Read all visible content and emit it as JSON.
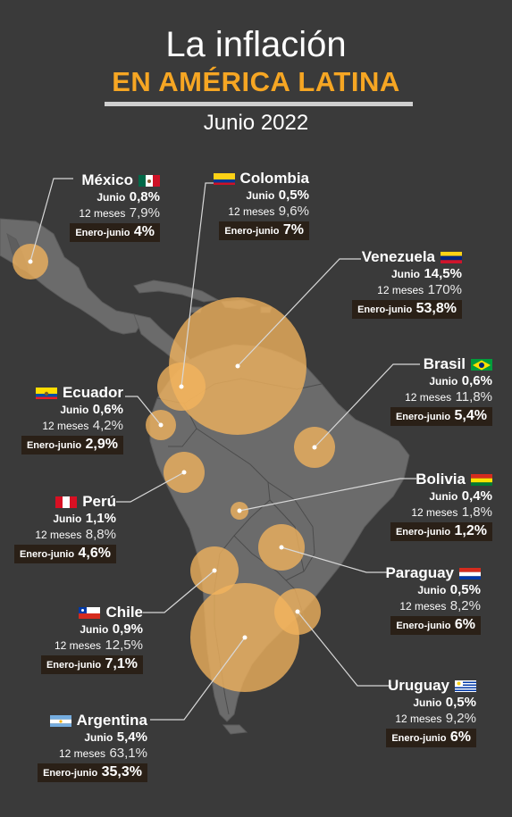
{
  "header": {
    "title": "La inflación",
    "subtitle": "EN AMÉRICA LATINA",
    "date": "Junio 2022"
  },
  "labels": {
    "junio": "Junio",
    "doce_meses": "12 meses",
    "enero_junio": "Enero-junio"
  },
  "colors": {
    "background": "#3a3a3a",
    "land": "#6b6b6b",
    "bubble": "#f2b35e",
    "accent": "#f6a623",
    "badge": "#2a2017"
  },
  "countries": [
    {
      "name": "México",
      "flag": "mexico-flag",
      "junio": "0,8%",
      "doce_meses": "7,9%",
      "enero_junio": "4%"
    },
    {
      "name": "Colombia",
      "flag": "colombia-flag",
      "junio": "0,5%",
      "doce_meses": "9,6%",
      "enero_junio": "7%"
    },
    {
      "name": "Venezuela",
      "flag": "venezuela-flag",
      "junio": "14,5%",
      "doce_meses": "170%",
      "enero_junio": "53,8%"
    },
    {
      "name": "Brasil",
      "flag": "brazil-flag",
      "junio": "0,6%",
      "doce_meses": "11,8%",
      "enero_junio": "5,4%"
    },
    {
      "name": "Ecuador",
      "flag": "ecuador-flag",
      "junio": "0,6%",
      "doce_meses": "4,2%",
      "enero_junio": "2,9%"
    },
    {
      "name": "Bolivia",
      "flag": "bolivia-flag",
      "junio": "0,4%",
      "doce_meses": "1,8%",
      "enero_junio": "1,2%"
    },
    {
      "name": "Perú",
      "flag": "peru-flag",
      "junio": "1,1%",
      "doce_meses": "8,8%",
      "enero_junio": "4,6%"
    },
    {
      "name": "Paraguay",
      "flag": "paraguay-flag",
      "junio": "0,5%",
      "doce_meses": "8,2%",
      "enero_junio": "6%"
    },
    {
      "name": "Chile",
      "flag": "chile-flag",
      "junio": "0,9%",
      "doce_meses": "12,5%",
      "enero_junio": "7,1%"
    },
    {
      "name": "Uruguay",
      "flag": "uruguay-flag",
      "junio": "0,5%",
      "doce_meses": "9,2%",
      "enero_junio": "6%"
    },
    {
      "name": "Argentina",
      "flag": "argentina-flag",
      "junio": "5,4%",
      "doce_meses": "63,1%",
      "enero_junio": "35,3%"
    }
  ]
}
